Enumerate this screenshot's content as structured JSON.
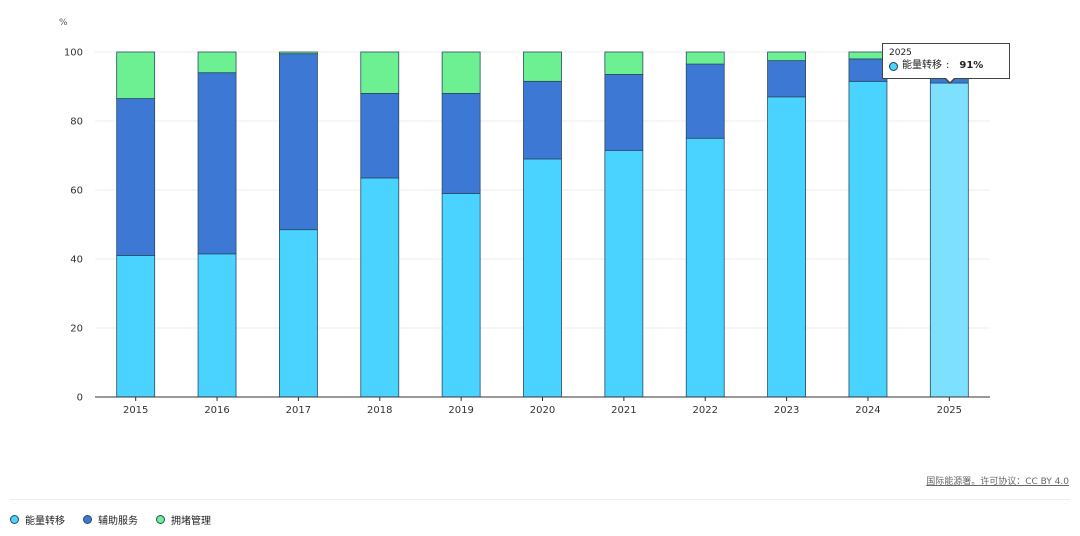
{
  "chart_data": {
    "type": "bar",
    "stacked": true,
    "title": "",
    "xlabel": "",
    "ylabel": "%",
    "ylim": [
      0,
      100
    ],
    "yticks": [
      0,
      20,
      40,
      60,
      80,
      100
    ],
    "grid": true,
    "legend_position": "bottom-left",
    "categories": [
      "2015",
      "2016",
      "2017",
      "2018",
      "2019",
      "2020",
      "2021",
      "2022",
      "2023",
      "2024",
      "2025"
    ],
    "series": [
      {
        "name": "能量转移",
        "color": "#4ad3ff",
        "values": [
          41,
          41.5,
          48.5,
          63.5,
          59,
          69,
          71.5,
          75,
          87,
          91.5,
          91
        ]
      },
      {
        "name": "辅助服务",
        "color": "#3d78d4",
        "values": [
          45.5,
          52.5,
          51,
          24.5,
          29,
          22.5,
          22,
          21.5,
          10.5,
          6.5,
          7
        ]
      },
      {
        "name": "拥堵管理",
        "color": "#6cf092",
        "values": [
          13.5,
          6,
          0.5,
          12,
          12,
          8.5,
          6.5,
          3.5,
          2.5,
          2,
          2
        ]
      }
    ],
    "highlight_index": 10,
    "highlight_color": "#7ee0ff"
  },
  "tooltip": {
    "year": "2025",
    "series_name": "能量转移",
    "value": "91%",
    "separator": ":"
  },
  "source_text": "国际能源署。许可协议：CC BY 4.0",
  "legend": {
    "items": [
      {
        "label": "能量转移",
        "color": "#4ad3ff"
      },
      {
        "label": "辅助服务",
        "color": "#3d78d4"
      },
      {
        "label": "拥堵管理",
        "color": "#6cf092"
      }
    ]
  }
}
